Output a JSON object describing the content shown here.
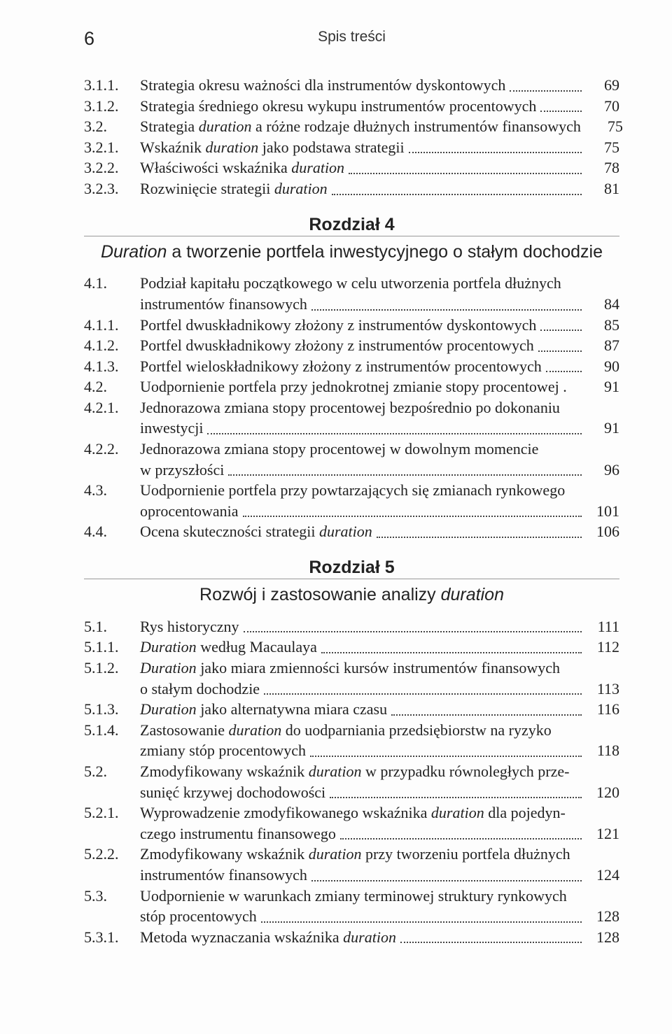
{
  "page_number": "6",
  "running_head": "Spis treści",
  "toc3": [
    {
      "n": "3.1.1.",
      "t": "Strategia okresu ważności dla instrumentów dyskontowych",
      "p": "69"
    },
    {
      "n": "3.1.2.",
      "t": "Strategia średniego okresu wykupu instrumentów procentowych",
      "p": "70"
    },
    {
      "n": "3.2.",
      "wrap": "Strategia <em class='it'>duration</em> a różne rodzaje dłużnych instrumentów finansowych",
      "p": "75",
      "nodots": true
    },
    {
      "n": "3.2.1.",
      "t": "Wskaźnik <em class='it'>duration</em> jako podstawa strategii",
      "p": "75"
    },
    {
      "n": "3.2.2.",
      "t": "Właściwości wskaźnika <em class='it'>duration</em>",
      "p": "78"
    },
    {
      "n": "3.2.3.",
      "t": "Rozwinięcie strategii <em class='it'>duration</em>",
      "p": "81"
    }
  ],
  "ch4": {
    "label": "Rozdział 4",
    "sub": "<span class='ital'>Duration</span> a tworzenie portfela inwestycyjnego o stałym dochodzie"
  },
  "toc4": [
    {
      "n": "4.1.",
      "wrap": "Podział kapitału początkowego w celu utworzenia portfela dłużnych",
      "tailn": "",
      "tailt": "instrumentów finansowych",
      "p": "84"
    },
    {
      "n": "4.1.1.",
      "t": "Portfel dwuskładnikowy złożony z instrumentów dyskontowych",
      "p": "85"
    },
    {
      "n": "4.1.2.",
      "t": "Portfel dwuskładnikowy złożony z instrumentów procentowych",
      "p": "87"
    },
    {
      "n": "4.1.3.",
      "t": "Portfel wieloskładnikowy złożony z instrumentów procentowych",
      "p": "90"
    },
    {
      "n": "4.2.",
      "t": "Uodpornienie portfela przy jednokrotnej zmianie stopy procentowej .",
      "p": "91",
      "nodots": true
    },
    {
      "n": "4.2.1.",
      "wrap": "Jednorazowa zmiana stopy procentowej bezpośrednio po dokonaniu",
      "tailn": "",
      "tailt": "inwestycji",
      "p": "91"
    },
    {
      "n": "4.2.2.",
      "wrap": "Jednorazowa zmiana stopy procentowej w dowolnym momencie",
      "tailn": "",
      "tailt": "w przyszłości",
      "p": "96"
    },
    {
      "n": "4.3.",
      "wrap": "Uodpornienie portfela przy powtarzających się zmianach rynkowego",
      "tailn": "",
      "tailt": "oprocentowania",
      "p": "101"
    },
    {
      "n": "4.4.",
      "t": "Ocena skuteczności strategii <em class='it'>duration</em>",
      "p": "106"
    }
  ],
  "ch5": {
    "label": "Rozdział 5",
    "sub": "Rozwój i zastosowanie analizy <span class='ital'>duration</span>"
  },
  "toc5": [
    {
      "n": "5.1.",
      "t": "Rys historyczny",
      "p": "111"
    },
    {
      "n": "5.1.1.",
      "t": "<em class='it'>Duration</em> według Macaulaya",
      "p": "112"
    },
    {
      "n": "5.1.2.",
      "wrap": "<em class='it'>Duration</em> jako miara zmienności kursów instrumentów finansowych",
      "tailn": "",
      "tailt": "o stałym dochodzie",
      "p": "113"
    },
    {
      "n": "5.1.3.",
      "t": "<em class='it'>Duration</em> jako alternatywna miara czasu",
      "p": "116"
    },
    {
      "n": "5.1.4.",
      "wrap": "Zastosowanie <em class='it'>duration</em> do uodparniania przedsiębiorstw na ryzyko",
      "tailn": "",
      "tailt": "zmiany stóp procentowych",
      "p": "118"
    },
    {
      "n": "5.2.",
      "wrap": "Zmodyfikowany wskaźnik <em class='it'>duration</em> w przypadku równoległych prze-",
      "tailn": "",
      "tailt": "sunięć krzywej dochodowości",
      "p": "120"
    },
    {
      "n": "5.2.1.",
      "wrap": "Wyprowadzenie zmodyfikowanego wskaźnika <em class='it'>duration</em> dla pojedyn-",
      "tailn": "",
      "tailt": "czego instrumentu finansowego",
      "p": "121"
    },
    {
      "n": "5.2.2.",
      "wrap": "Zmodyfikowany wskaźnik <em class='it'>duration</em> przy tworzeniu portfela dłużnych",
      "tailn": "",
      "tailt": "instrumentów finansowych",
      "p": "124"
    },
    {
      "n": "5.3.",
      "wrap": "Uodpornienie w warunkach zmiany terminowej struktury rynkowych",
      "tailn": "",
      "tailt": "stóp procentowych",
      "p": "128"
    },
    {
      "n": "5.3.1.",
      "t": "Metoda wyznaczania wskaźnika <em class='it'>duration</em>",
      "p": "128"
    }
  ]
}
